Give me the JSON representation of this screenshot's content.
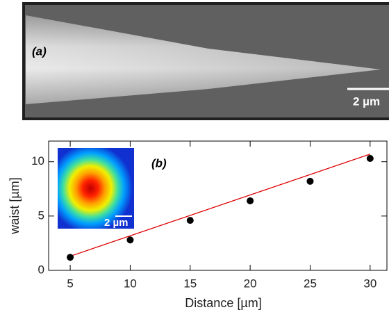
{
  "panel_a": {
    "label": "(a)",
    "scale_bar": "2 µm"
  },
  "chart_data": {
    "type": "scatter",
    "label": "(b)",
    "x_label": "Distance [µm]",
    "y_label": "waist [µm]",
    "inset_scale_bar": "2 µm",
    "x": [
      5,
      10,
      15,
      20,
      25,
      30
    ],
    "values": [
      1.2,
      2.8,
      4.6,
      6.4,
      8.2,
      10.3
    ],
    "color": "#000000",
    "fit": {
      "x": [
        5,
        30
      ],
      "values": [
        1.3,
        10.7
      ],
      "color": "#e00000"
    },
    "xlim": [
      3.2,
      31.4
    ],
    "ylim": [
      0,
      11.9
    ],
    "xticks": [
      5,
      10,
      15,
      20,
      25,
      30
    ],
    "yticks": [
      0,
      5,
      10
    ]
  }
}
